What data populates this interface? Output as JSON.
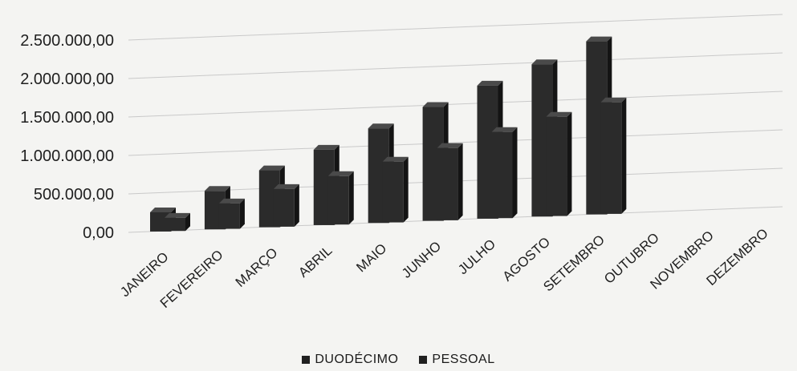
{
  "chart_data": {
    "type": "bar",
    "title": "",
    "xlabel": "",
    "ylabel": "",
    "ylim": [
      0,
      2500000
    ],
    "yticks": [
      "0,00",
      "500.000,00",
      "1.000.000,00",
      "1.500.000,00",
      "2.000.000,00",
      "2.500.000,00"
    ],
    "categories": [
      "JANEIRO",
      "FEVEREIRO",
      "MARÇO",
      "ABRIL",
      "MAIO",
      "JUNHO",
      "JULHO",
      "AGOSTO",
      "SETEMBRO",
      "OUTUBRO",
      "NOVEMBRO",
      "DEZEMBRO"
    ],
    "series": [
      {
        "name": "DUODÉCIMO",
        "values": [
          250000,
          500000,
          740000,
          980000,
          1230000,
          1480000,
          1730000,
          1980000,
          2250000,
          null,
          null,
          null
        ]
      },
      {
        "name": "PESSOAL",
        "values": [
          170000,
          330000,
          490000,
          630000,
          790000,
          940000,
          1120000,
          1290000,
          1450000,
          null,
          null,
          null
        ]
      }
    ],
    "grid": true,
    "legend_position": "bottom"
  },
  "colors": {
    "bar": "#2b2b2b",
    "bar_side": "#141414",
    "bar_top": "#4a4a4a",
    "grid": "#c9c9c9"
  }
}
